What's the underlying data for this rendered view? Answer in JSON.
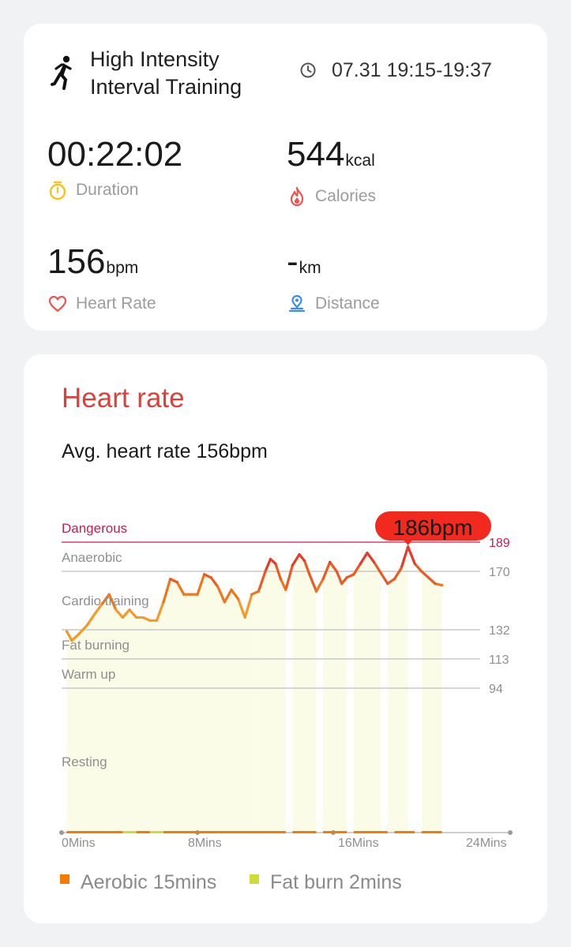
{
  "summary": {
    "workout_icon": "running-person-icon",
    "workout_title": "High Intensity Interval Training",
    "time_icon": "clock-icon",
    "time_range": "07.31 19:15-19:37",
    "metrics": {
      "duration": {
        "value": "00:22:02",
        "unit": "",
        "label": "Duration",
        "icon": "stopwatch-icon",
        "color": "#f5c518"
      },
      "calories": {
        "value": "544",
        "unit": "kcal",
        "label": "Calories",
        "icon": "flame-icon",
        "color": "#ef5350"
      },
      "heart_rate": {
        "value": "156",
        "unit": "bpm",
        "label": "Heart Rate",
        "icon": "heart-icon",
        "color": "#ef5350"
      },
      "distance": {
        "value": "-",
        "unit": "km",
        "label": "Distance",
        "icon": "location-pin-icon",
        "color": "#3a8ee6"
      }
    }
  },
  "heart_rate": {
    "title": "Heart rate",
    "avg_text": "Avg. heart rate 156bpm",
    "legend": [
      {
        "label": "Aerobic 15mins",
        "color": "#f57c00"
      },
      {
        "label": "Fat burn 2mins",
        "color": "#cddc39"
      }
    ]
  },
  "chart_data": {
    "type": "line",
    "title": "",
    "xlabel": "",
    "ylabel": "",
    "x_unit": "Mins",
    "xlim": [
      0,
      24
    ],
    "x_ticks": [
      "0Mins",
      "8Mins",
      "16Mins",
      "24Mins"
    ],
    "y_ticks": [
      94,
      113,
      132,
      170,
      189
    ],
    "zones": [
      {
        "name": "Dangerous",
        "threshold": 189
      },
      {
        "name": "Anaerobic",
        "threshold": 170
      },
      {
        "name": "Cardio training",
        "threshold": 132
      },
      {
        "name": "Fat burning",
        "threshold": 113
      },
      {
        "name": "Warm up",
        "threshold": 94
      },
      {
        "name": "Resting",
        "threshold": 0
      }
    ],
    "peak": {
      "x": 20.4,
      "value": 186,
      "label": "186bpm"
    },
    "series": [
      {
        "values": [
          [
            0.3,
            131
          ],
          [
            0.6,
            125
          ],
          [
            1.0,
            129
          ],
          [
            1.5,
            135
          ],
          [
            2.0,
            143
          ],
          [
            2.4,
            149
          ],
          [
            2.8,
            155
          ],
          [
            3.2,
            145
          ],
          [
            3.6,
            140
          ],
          [
            4.0,
            145
          ],
          [
            4.4,
            140
          ],
          [
            4.8,
            140
          ],
          [
            5.2,
            138
          ],
          [
            5.6,
            138
          ],
          [
            6.0,
            150
          ],
          [
            6.4,
            165
          ],
          [
            6.8,
            163
          ],
          [
            7.2,
            155
          ],
          [
            7.6,
            155
          ],
          [
            8.0,
            155
          ],
          [
            8.4,
            168
          ],
          [
            8.8,
            166
          ],
          [
            9.2,
            160
          ],
          [
            9.6,
            150
          ],
          [
            10.0,
            158
          ],
          [
            10.4,
            152
          ],
          [
            10.8,
            140
          ],
          [
            11.2,
            155
          ],
          [
            11.6,
            157
          ],
          [
            12.0,
            170
          ],
          [
            12.3,
            178
          ],
          [
            12.6,
            175
          ],
          [
            12.9,
            165
          ],
          [
            13.2,
            158
          ],
          [
            13.6,
            174
          ],
          [
            14.0,
            181
          ],
          [
            14.3,
            177
          ],
          [
            14.6,
            168
          ],
          [
            15.0,
            157
          ],
          [
            15.4,
            165
          ],
          [
            15.8,
            176
          ],
          [
            16.2,
            170
          ],
          [
            16.5,
            162
          ],
          [
            16.8,
            166
          ],
          [
            17.2,
            168
          ],
          [
            17.6,
            175
          ],
          [
            18.0,
            182
          ],
          [
            18.4,
            176
          ],
          [
            18.8,
            169
          ],
          [
            19.2,
            162
          ],
          [
            19.6,
            165
          ],
          [
            20.0,
            172
          ],
          [
            20.4,
            186
          ],
          [
            20.8,
            175
          ],
          [
            21.2,
            170
          ],
          [
            21.6,
            166
          ],
          [
            22.0,
            162
          ],
          [
            22.4,
            161
          ]
        ]
      }
    ],
    "zone_time_bars": [
      [
        0.3,
        3.6,
        "aerobic"
      ],
      [
        3.6,
        4.4,
        "fatburn"
      ],
      [
        4.4,
        5.2,
        "aerobic"
      ],
      [
        5.2,
        6.0,
        "fatburn"
      ],
      [
        6.0,
        11.6,
        "aerobic"
      ],
      [
        11.6,
        13.2,
        "aerobic"
      ],
      [
        13.6,
        15.0,
        "aerobic"
      ],
      [
        15.4,
        16.8,
        "aerobic"
      ],
      [
        17.2,
        19.2,
        "aerobic"
      ],
      [
        19.6,
        20.8,
        "aerobic"
      ],
      [
        21.2,
        22.4,
        "aerobic"
      ]
    ],
    "shaded_segments": [
      [
        0.3,
        11.6
      ],
      [
        11.6,
        13.2
      ],
      [
        13.6,
        15.0
      ],
      [
        15.4,
        16.8
      ],
      [
        17.2,
        18.8
      ],
      [
        19.2,
        20.4
      ],
      [
        21.2,
        22.4
      ]
    ],
    "grid": true
  }
}
